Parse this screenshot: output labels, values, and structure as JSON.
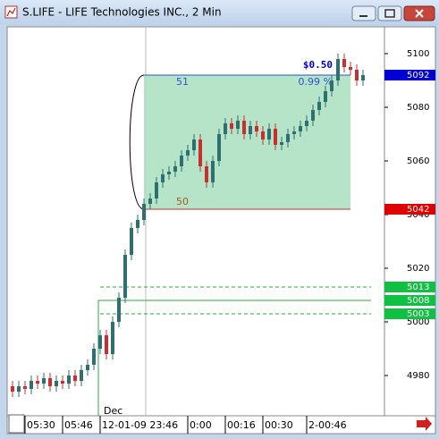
{
  "window": {
    "title": "S.LIFE - LIFE Technologies INC., 2 Min"
  },
  "chart_data": {
    "type": "candlestick",
    "categories": [
      null,
      null,
      null,
      null,
      null,
      null,
      null,
      null,
      null,
      null,
      null,
      null,
      null,
      null,
      null,
      null,
      null,
      null,
      null,
      null,
      null,
      null,
      null,
      null,
      null,
      null,
      null,
      null,
      null,
      null,
      null,
      null,
      null,
      null,
      null,
      null,
      null,
      null,
      null,
      null,
      null,
      null,
      null,
      null,
      null,
      null,
      null,
      null,
      null,
      null,
      null,
      null,
      null,
      null,
      null,
      null,
      null
    ],
    "open": [
      4976,
      4974,
      4976,
      4975,
      4978,
      4977,
      4979,
      4976,
      4978,
      4977,
      4980,
      4978,
      4982,
      4984,
      4990,
      4995,
      4988,
      5000,
      5009,
      5025,
      5035,
      5038,
      5044,
      5046,
      5052,
      5055,
      5056,
      5058,
      5062,
      5064,
      5068,
      5058,
      5052,
      5060,
      5070,
      5074,
      5072,
      5075,
      5070,
      5073,
      5071,
      5068,
      5072,
      5066,
      5067,
      5070,
      5071,
      5073,
      5075,
      5079,
      5082,
      5086,
      5090,
      5098,
      5095,
      5094,
      5090
    ],
    "high": [
      4978,
      4978,
      4978,
      4980,
      4980,
      4981,
      4981,
      4980,
      4980,
      4982,
      4982,
      4984,
      4986,
      4992,
      4997,
      4997,
      5002,
      5011,
      5027,
      5037,
      5040,
      5046,
      5048,
      5054,
      5057,
      5058,
      5060,
      5064,
      5066,
      5070,
      5070,
      5060,
      5062,
      5072,
      5076,
      5076,
      5077,
      5077,
      5075,
      5075,
      5073,
      5074,
      5074,
      5069,
      5072,
      5073,
      5075,
      5077,
      5081,
      5084,
      5088,
      5092,
      5100,
      5100,
      5097,
      5096,
      5094
    ],
    "low": [
      4972,
      4972,
      4973,
      4973,
      4975,
      4975,
      4974,
      4974,
      4975,
      4975,
      4976,
      4976,
      4980,
      4982,
      4988,
      4986,
      4986,
      4998,
      5007,
      5023,
      5033,
      5036,
      5042,
      5044,
      5050,
      5053,
      5054,
      5056,
      5060,
      5062,
      5056,
      5050,
      5050,
      5058,
      5068,
      5070,
      5070,
      5068,
      5068,
      5069,
      5066,
      5066,
      5064,
      5064,
      5065,
      5068,
      5069,
      5071,
      5073,
      5077,
      5080,
      5084,
      5088,
      5093,
      5092,
      5088,
      5088
    ],
    "close": [
      4974,
      4976,
      4975,
      4978,
      4977,
      4979,
      4976,
      4978,
      4977,
      4980,
      4978,
      4982,
      4984,
      4990,
      4995,
      4988,
      5000,
      5009,
      5025,
      5035,
      5038,
      5044,
      5046,
      5052,
      5055,
      5056,
      5058,
      5062,
      5064,
      5068,
      5058,
      5052,
      5060,
      5070,
      5074,
      5072,
      5075,
      5070,
      5073,
      5071,
      5068,
      5072,
      5066,
      5067,
      5070,
      5071,
      5073,
      5075,
      5079,
      5082,
      5086,
      5090,
      5098,
      5095,
      5094,
      5090,
      5092
    ],
    "up_color": "#2f6f6f",
    "down_color": "#c83030",
    "ylim": [
      4965,
      5110
    ],
    "yticks": [
      4980,
      5000,
      5020,
      5040,
      5060,
      5080,
      5100
    ],
    "xticks": [
      {
        "value": 2,
        "label": "05:30"
      },
      {
        "value": 8,
        "label": "05:46"
      },
      {
        "value": 14,
        "label": "12-01-09 23:46"
      },
      {
        "value": 28,
        "label": "0:00"
      },
      {
        "value": 34,
        "label": "00:16"
      },
      {
        "value": 40,
        "label": "00:30"
      },
      {
        "value": 47,
        "label": "2-00:46"
      }
    ],
    "date_marker": "Dec",
    "price_markers": [
      {
        "value": 5092,
        "color": "#0000d0"
      },
      {
        "value": 5042,
        "color": "#e00000"
      },
      {
        "value": 5013,
        "color": "#10c040"
      },
      {
        "value": 5008,
        "color": "#10c040"
      },
      {
        "value": 5003,
        "color": "#10c040"
      }
    ],
    "levels": [
      {
        "value": 5013,
        "style": "dashed"
      },
      {
        "value": 5008,
        "style": "solid"
      },
      {
        "value": 5003,
        "style": "dashed"
      }
    ],
    "measure": {
      "from": 5042,
      "to": 5092,
      "start": 21,
      "end": 54,
      "bars_top": "51",
      "percent": "0.99 %",
      "change": "$0.50",
      "bars_bottom": "50"
    }
  }
}
